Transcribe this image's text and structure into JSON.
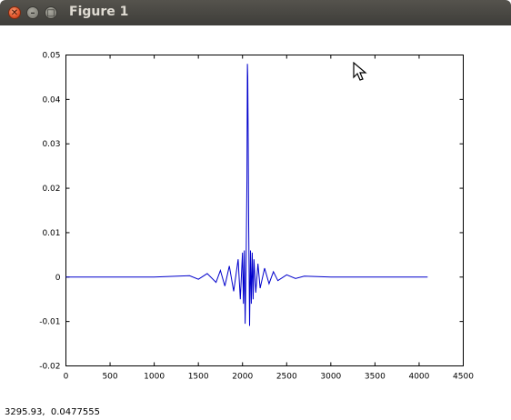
{
  "window": {
    "title": "Figure 1"
  },
  "status": {
    "coords": "3295.93,  0.0477555"
  },
  "chart_data": {
    "type": "line",
    "title": "",
    "xlabel": "",
    "ylabel": "",
    "xlim": [
      0,
      4500
    ],
    "ylim": [
      -0.02,
      0.05
    ],
    "grid": false,
    "color": "#0000cc",
    "xticks": [
      "0",
      "500",
      "1000",
      "1500",
      "2000",
      "2500",
      "3000",
      "3500",
      "4000",
      "4500"
    ],
    "yticks": [
      "-0.02",
      "-0.01",
      "0",
      "0.01",
      "0.02",
      "0.03",
      "0.04",
      "0.05"
    ],
    "series": [
      {
        "x": [
          0,
          1000,
          1400,
          1500,
          1600,
          1700,
          1750,
          1800,
          1850,
          1900,
          1950,
          1975,
          2000,
          2010,
          2020,
          2030,
          2040,
          2050,
          2055,
          2060,
          2065,
          2070,
          2080,
          2090,
          2100,
          2110,
          2120,
          2130,
          2150,
          2175,
          2200,
          2250,
          2300,
          2350,
          2400,
          2500,
          2600,
          2700,
          3000,
          4096
        ],
        "y": [
          0,
          0,
          0.0003,
          -0.0005,
          0.0008,
          -0.0012,
          0.0015,
          -0.002,
          0.0025,
          -0.0032,
          0.004,
          -0.005,
          0.0055,
          -0.006,
          0.006,
          -0.0105,
          0.002,
          0.022,
          0.048,
          0.045,
          0.03,
          0.012,
          -0.011,
          0.006,
          -0.006,
          0.0055,
          -0.005,
          0.004,
          -0.0035,
          0.003,
          -0.0025,
          0.002,
          -0.0015,
          0.0012,
          -0.0008,
          0.0005,
          -0.0003,
          0.0002,
          0,
          0
        ]
      }
    ]
  }
}
